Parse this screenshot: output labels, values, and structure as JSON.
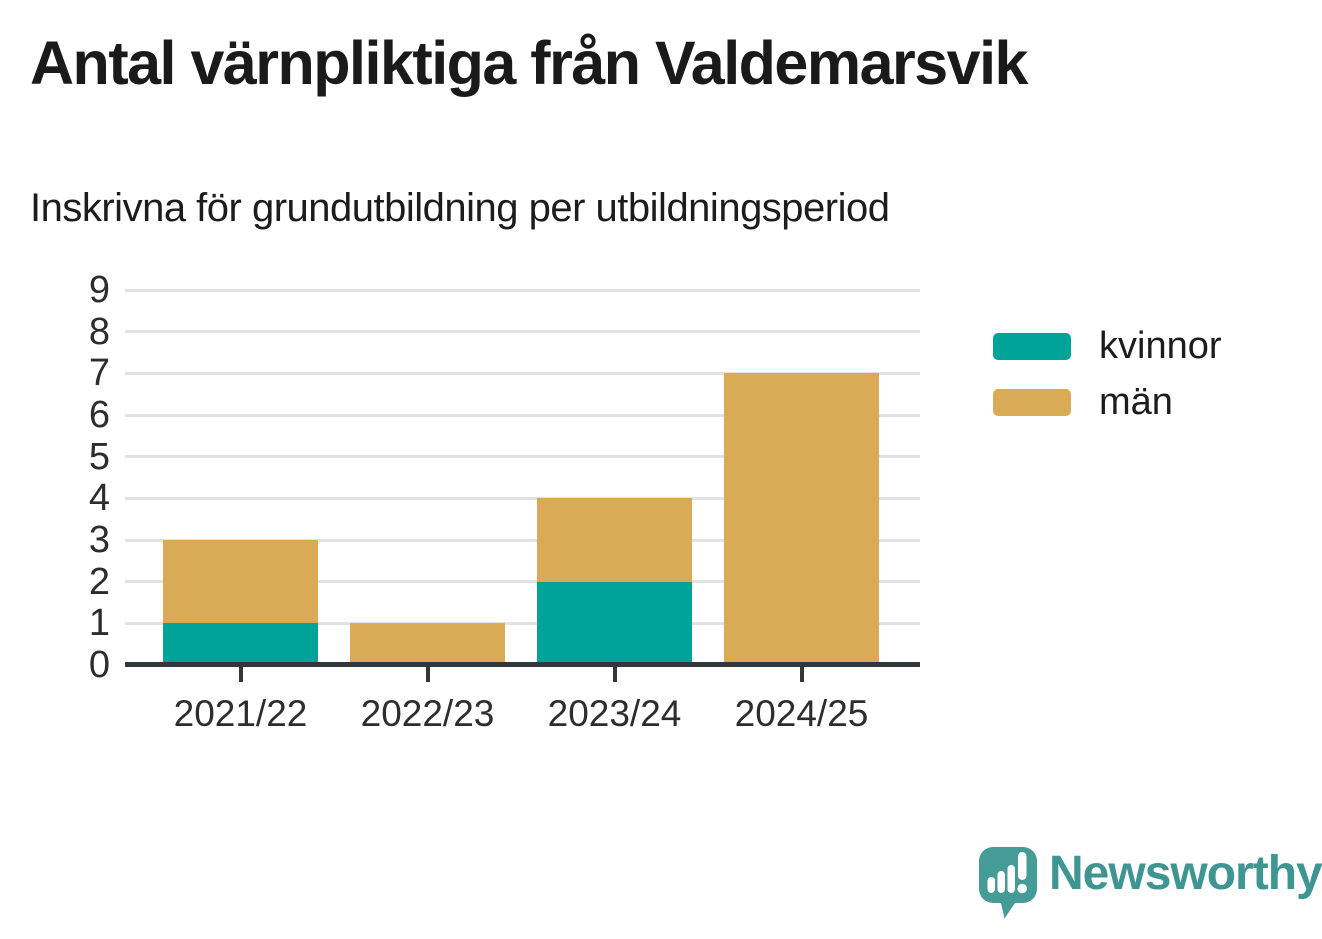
{
  "title": "Antal värnpliktiga från Valdemarsvik",
  "subtitle": "Inskrivna för grundutbildning per utbildningsperiod",
  "chart_data": {
    "type": "bar",
    "stacked": true,
    "title": "Antal värnpliktiga från Valdemarsvik",
    "subtitle": "Inskrivna för grundutbildning per utbildningsperiod",
    "categories": [
      "2021/22",
      "2022/23",
      "2023/24",
      "2024/25"
    ],
    "series": [
      {
        "name": "kvinnor",
        "color": "#00a398",
        "values": [
          1,
          0,
          2,
          0
        ]
      },
      {
        "name": "män",
        "color": "#d9ab57",
        "values": [
          2,
          1,
          2,
          7
        ]
      }
    ],
    "totals": [
      3,
      1,
      4,
      7
    ],
    "xlabel": "",
    "ylabel": "",
    "ylim": [
      0,
      9
    ],
    "yticks": [
      0,
      1,
      2,
      3,
      4,
      5,
      6,
      7,
      8,
      9
    ],
    "grid": true,
    "gridline_color": "#e2e2e2",
    "axis_color": "#33373a",
    "legend_position": "right"
  },
  "branding": {
    "logo_text": "Newsworthy",
    "logo_icon": "newsworthy-speech-bubble-bar-chart-icon",
    "logo_color": "#459b96",
    "wordmark_color": "#3e9591"
  }
}
